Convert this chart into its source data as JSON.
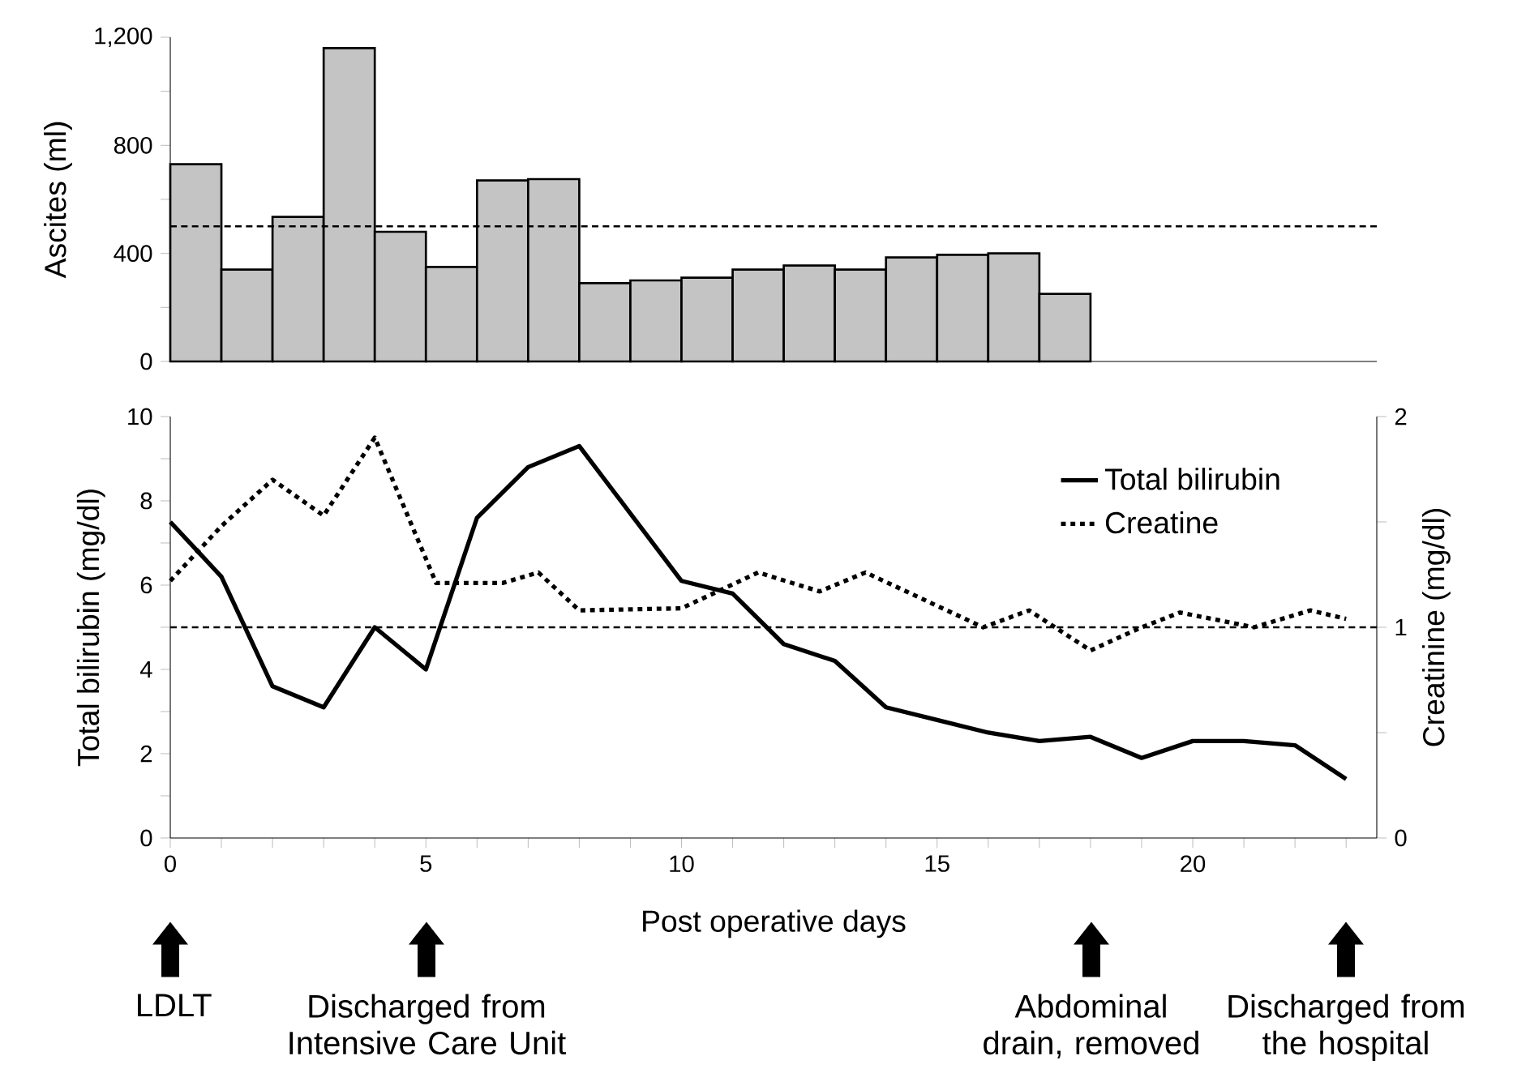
{
  "chart_data": [
    {
      "type": "bar",
      "ylabel": "Ascites (ml)",
      "x": [
        0.5,
        1.5,
        2.5,
        3.5,
        4.5,
        5.5,
        6.5,
        7.5,
        8.5,
        9.5,
        10.5,
        11.5,
        12.5,
        13.5,
        14.5,
        15.5,
        16.5,
        17.5
      ],
      "values": [
        730,
        340,
        535,
        1160,
        480,
        350,
        670,
        675,
        290,
        300,
        310,
        340,
        355,
        340,
        385,
        395,
        400,
        250
      ],
      "color": "#c4c4c4",
      "xlim": [
        0,
        23.6
      ],
      "ylim": [
        0,
        1200
      ],
      "yticks": [
        0,
        {
          "value": 200,
          "label": null
        },
        400,
        {
          "value": 600,
          "label": null
        },
        800,
        {
          "value": 1000,
          "label": null
        },
        {
          "value": 1200,
          "label": "1,200"
        }
      ],
      "tick_labels": "y",
      "ref_lines": [
        {
          "axis": "y",
          "value": 500,
          "line_style": "dashed"
        }
      ]
    },
    {
      "type": "line",
      "xlabel": "Post operative days",
      "ylabel": "Total bilirubin (mg/dl)",
      "y2label": "Creatinine (mg/dl)",
      "xlim": [
        0,
        23.6
      ],
      "xticks": [
        0,
        {
          "value": 1,
          "label": null
        },
        {
          "value": 2,
          "label": null
        },
        {
          "value": 3,
          "label": null
        },
        {
          "value": 4,
          "label": null
        },
        5,
        {
          "value": 6,
          "label": null
        },
        {
          "value": 7,
          "label": null
        },
        {
          "value": 8,
          "label": null
        },
        {
          "value": 9,
          "label": null
        },
        10,
        {
          "value": 11,
          "label": null
        },
        {
          "value": 12,
          "label": null
        },
        {
          "value": 13,
          "label": null
        },
        {
          "value": 14,
          "label": null
        },
        15,
        {
          "value": 16,
          "label": null
        },
        {
          "value": 17,
          "label": null
        },
        {
          "value": 18,
          "label": null
        },
        {
          "value": 19,
          "label": null
        },
        20,
        {
          "value": 21,
          "label": null
        },
        {
          "value": 22,
          "label": null
        },
        {
          "value": 23,
          "label": null
        }
      ],
      "ylim": [
        0,
        10
      ],
      "yticks": [
        0,
        {
          "value": 1,
          "label": null
        },
        2,
        {
          "value": 3,
          "label": null
        },
        4,
        {
          "value": 5,
          "label": null
        },
        6,
        {
          "value": 7,
          "label": null
        },
        8,
        {
          "value": 9,
          "label": null
        },
        10
      ],
      "y2lim": [
        0,
        2
      ],
      "y2ticks": [
        0,
        {
          "value": 0.5,
          "label": null
        },
        1,
        {
          "value": 1.5,
          "label": null
        },
        2
      ],
      "legend": "top right",
      "series": [
        {
          "name": "Total bilirubin",
          "color": "#000000",
          "line_style": "solid",
          "x": [
            0,
            1,
            2,
            3,
            4,
            5,
            6,
            7,
            8,
            9,
            10,
            11,
            12,
            13,
            14,
            15,
            16,
            17,
            18,
            19,
            20,
            21,
            22,
            23
          ],
          "values": [
            7.5,
            6.2,
            3.6,
            3.1,
            5.0,
            4.0,
            7.6,
            8.8,
            9.3,
            7.7,
            6.1,
            5.8,
            4.6,
            4.2,
            3.1,
            2.8,
            2.5,
            2.3,
            2.4,
            1.9,
            2.3,
            2.3,
            2.2,
            1.4
          ]
        },
        {
          "name": "Creatine",
          "color": "#000000",
          "line_style": "dotted",
          "axis": "y2",
          "x": [
            0,
            1,
            2,
            3,
            4,
            5.2,
            6.5,
            7.2,
            8,
            10,
            11.5,
            12.7,
            13.6,
            15.9,
            16.8,
            18,
            19,
            19.75,
            21.2,
            22.3,
            23
          ],
          "values": [
            1.22,
            1.48,
            1.7,
            1.53,
            1.9,
            1.21,
            1.21,
            1.26,
            1.08,
            1.09,
            1.26,
            1.17,
            1.26,
            1.0,
            1.08,
            0.89,
            1.0,
            1.07,
            1.0,
            1.08,
            1.04
          ]
        }
      ],
      "ref_lines": [
        {
          "axis": "y",
          "value": 5,
          "line_style": "dashed"
        }
      ],
      "annotations": [
        "LDLT",
        "Discharged from Intensive Care Unit",
        "Abdominal drain, removed",
        "Discharged from the hospital"
      ]
    }
  ]
}
